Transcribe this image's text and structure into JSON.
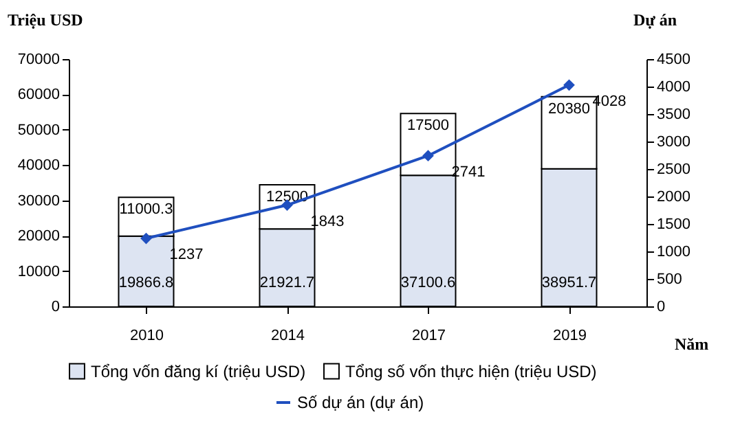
{
  "chart_data": {
    "type": "bar",
    "stacked": true,
    "categories": [
      "2010",
      "2014",
      "2017",
      "2019"
    ],
    "xlabel": "Năm",
    "ylabel": "Triệu USD",
    "y2label": "Dự án",
    "ylim": [
      0,
      70000
    ],
    "yticks": [
      0,
      10000,
      20000,
      30000,
      40000,
      50000,
      60000,
      70000
    ],
    "y2lim": [
      0,
      4500
    ],
    "y2ticks": [
      0,
      500,
      1000,
      1500,
      2000,
      2500,
      3000,
      3500,
      4000,
      4500
    ],
    "data_labels": true,
    "legend": "bottom",
    "marker": "diamond",
    "grid": false,
    "series": [
      {
        "name": "Tổng vốn đăng kí (triệu USD)",
        "color": "#dde4f2",
        "values": [
          19866.8,
          21921.7,
          37100.6,
          38951.7
        ]
      },
      {
        "name": "Tổng số vốn thực hiện (triệu USD)",
        "color": "#ffffff",
        "values": [
          11000.3,
          12500,
          17500,
          20380
        ]
      },
      {
        "name": "Số dự án (dự án)",
        "type": "line",
        "axis": "y2",
        "color": "#1f4fbf",
        "values": [
          1237,
          1843,
          2741,
          4028
        ]
      }
    ]
  }
}
